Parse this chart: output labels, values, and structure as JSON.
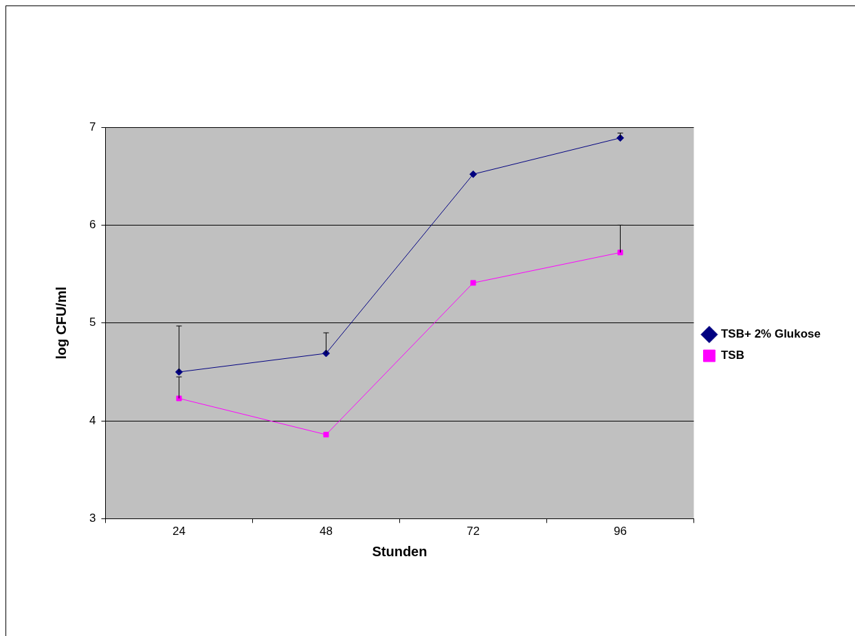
{
  "chart_data": {
    "type": "line",
    "xlabel": "Stunden",
    "ylabel": "log CFU/ml",
    "categories": [
      "24",
      "48",
      "72",
      "96"
    ],
    "series": [
      {
        "name": "TSB+ 2% Glukose",
        "color": "#000080",
        "marker": "diamond",
        "values": [
          4.5,
          4.69,
          6.52,
          6.89
        ],
        "errors": [
          [
            4.5,
            4.97
          ],
          [
            4.69,
            4.9
          ],
          null,
          [
            6.89,
            6.94
          ]
        ]
      },
      {
        "name": "TSB",
        "color": "#ff00ff",
        "marker": "square",
        "values": [
          4.23,
          3.86,
          5.41,
          5.72
        ],
        "errors": [
          [
            4.23,
            4.45
          ],
          null,
          null,
          [
            5.72,
            6.0
          ]
        ]
      }
    ],
    "ylim": [
      3,
      7
    ],
    "yticks": [
      3,
      4,
      5,
      6,
      7
    ],
    "grid": "y",
    "legend": "right",
    "line_style": "solid"
  }
}
